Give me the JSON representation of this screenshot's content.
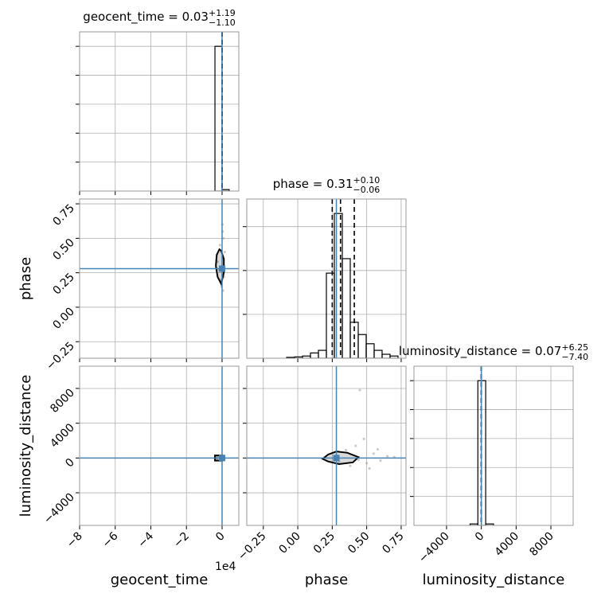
{
  "chart_data": [
    {
      "type": "histogram",
      "title": "geocent_time = 0.03",
      "title_sup": "+1.19",
      "title_sub": "−1.10",
      "bins": [
        -4000,
        0,
        4000
      ],
      "counts": [
        1000,
        10
      ],
      "color": "#000000",
      "xlim": [
        -80000,
        9400
      ],
      "xticks": [
        -80000,
        -60000,
        -40000,
        -20000,
        0
      ],
      "ylim": [
        0,
        1100
      ],
      "yticks": [
        200,
        400,
        600,
        800,
        1000
      ],
      "quantiles": [
        -1.07,
        0.03,
        1.22
      ],
      "truth": 0,
      "truth_color": "#4682b4",
      "grid": true
    },
    {
      "type": "scatter",
      "ylabel": "phase",
      "x": [
        -1200,
        800,
        -2500,
        500,
        1500,
        -600,
        300,
        -1800,
        1000,
        200,
        -300,
        600
      ],
      "y": [
        0.45,
        0.5,
        0.33,
        0.12,
        0.4,
        0.2,
        0.55,
        0.27,
        0.22,
        0.6,
        0.15,
        0.35
      ],
      "contour_x": [
        -1500,
        -3000,
        -3500,
        -2500,
        -500,
        1000,
        1000,
        -500
      ],
      "contour_y": [
        0.42,
        0.38,
        0.3,
        0.22,
        0.17,
        0.25,
        0.35,
        0.41
      ],
      "color": "#999999",
      "xlim": [
        -80000,
        9400
      ],
      "xticks": [
        -80000,
        -60000,
        -40000,
        -20000,
        0
      ],
      "ylim": [
        -0.37,
        0.785
      ],
      "yticks": [
        {
          "value": -0.25,
          "label": "−0.25"
        },
        {
          "value": 0,
          "label": "0.00"
        },
        {
          "value": 0.25,
          "label": "0.25"
        },
        {
          "value": 0.5,
          "label": "0.50"
        },
        {
          "value": 0.75,
          "label": "0.75"
        }
      ],
      "truth_x": 0,
      "truth_y": 0.28,
      "truth_color": "#4682b4",
      "grid": true
    },
    {
      "type": "histogram",
      "title": "phase = 0.31",
      "title_sup": "+0.10",
      "title_sub": "−0.06",
      "bins": [
        -0.37,
        -0.31225,
        -0.2545,
        -0.19675,
        -0.139,
        -0.08125,
        -0.0235,
        0.03425,
        0.092,
        0.14975,
        0.2075,
        0.26525,
        0.323,
        0.38075,
        0.4385,
        0.49625,
        0.554,
        0.61175,
        0.6695,
        0.72725,
        0.785
      ],
      "counts": [
        0,
        0,
        0,
        0,
        0,
        2,
        3,
        5,
        12,
        18,
        194,
        330,
        227,
        82,
        54,
        33,
        18,
        9,
        5,
        0
      ],
      "color": "#000000",
      "xlim": [
        -0.37,
        0.785
      ],
      "xticks": [
        -0.25,
        0,
        0.25,
        0.5,
        0.75
      ],
      "ylim": [
        0,
        363
      ],
      "yticks": [
        100,
        200,
        300
      ],
      "quantiles": [
        0.25,
        0.31,
        0.41
      ],
      "truth": 0.28,
      "truth_color": "#4682b4",
      "grid": true
    },
    {
      "type": "scatter",
      "xlabel": "geocent_time",
      "ylabel": "luminosity_distance",
      "x_offset": "1e4",
      "x": [
        -3500,
        -2800,
        -2000,
        500,
        1200,
        -1000,
        800,
        -3000,
        300,
        -4000
      ],
      "y": [
        150,
        -200,
        250,
        300,
        -150,
        -300,
        100,
        50,
        -250,
        0
      ],
      "contour_x": [
        -4000,
        -4000,
        0,
        0
      ],
      "contour_y": [
        -300,
        300,
        300,
        -300
      ],
      "color": "#999999",
      "xlim": [
        -80000,
        9400
      ],
      "xticks": [
        {
          "value": -80000,
          "label": "−8"
        },
        {
          "value": -60000,
          "label": "−6"
        },
        {
          "value": -40000,
          "label": "−4"
        },
        {
          "value": -20000,
          "label": "−2"
        },
        0
      ],
      "ylim": [
        -7750,
        10560
      ],
      "yticks": [
        {
          "value": -4000,
          "label": "−4000"
        },
        0,
        4000,
        8000
      ],
      "truth_x": 0,
      "truth_y": 0,
      "truth_color": "#4682b4",
      "grid": true
    },
    {
      "type": "scatter",
      "xlabel": "phase",
      "x": [
        0.45,
        0.35,
        0.5,
        0.55,
        0.6,
        0.42,
        0.38,
        0.65,
        0.48,
        0.3,
        0.58,
        0.7,
        0.52,
        0.44
      ],
      "y": [
        7810,
        900,
        -600,
        500,
        -300,
        1400,
        -900,
        200,
        2200,
        -400,
        1000,
        100,
        -1200,
        -200
      ],
      "contour_x": [
        0.18,
        0.22,
        0.28,
        0.36,
        0.44,
        0.4,
        0.3,
        0.22
      ],
      "contour_y": [
        -100,
        400,
        750,
        600,
        100,
        -500,
        -700,
        -400
      ],
      "color": "#999999",
      "xlim": [
        -0.37,
        0.785
      ],
      "xticks": [
        {
          "value": -0.25,
          "label": "−0.25"
        },
        {
          "value": 0,
          "label": "0.00"
        },
        {
          "value": 0.25,
          "label": "0.25"
        },
        {
          "value": 0.5,
          "label": "0.50"
        },
        {
          "value": 0.75,
          "label": "0.75"
        }
      ],
      "ylim": [
        -7750,
        10560
      ],
      "yticks": [
        -4000,
        0,
        4000,
        8000
      ],
      "truth_x": 0.28,
      "truth_y": 0,
      "truth_color": "#4682b4",
      "grid": true
    },
    {
      "type": "histogram",
      "xlabel": "luminosity_distance",
      "title": "luminosity_distance = 0.07",
      "title_sup": "+6.25",
      "title_sub": "−7.40",
      "bins": [
        -1300,
        -400,
        500,
        1400
      ],
      "counts": [
        10,
        1000,
        10
      ],
      "color": "#000000",
      "xlim": [
        -7750,
        10560
      ],
      "xticks": [
        {
          "value": -4000,
          "label": "−4000"
        },
        0,
        4000,
        8000
      ],
      "ylim": [
        0,
        1100
      ],
      "yticks": [
        200,
        400,
        600,
        800,
        1000
      ],
      "quantiles": [
        -7.33,
        0.07,
        6.32
      ],
      "truth": 0,
      "truth_color": "#4682b4",
      "grid": true
    }
  ]
}
